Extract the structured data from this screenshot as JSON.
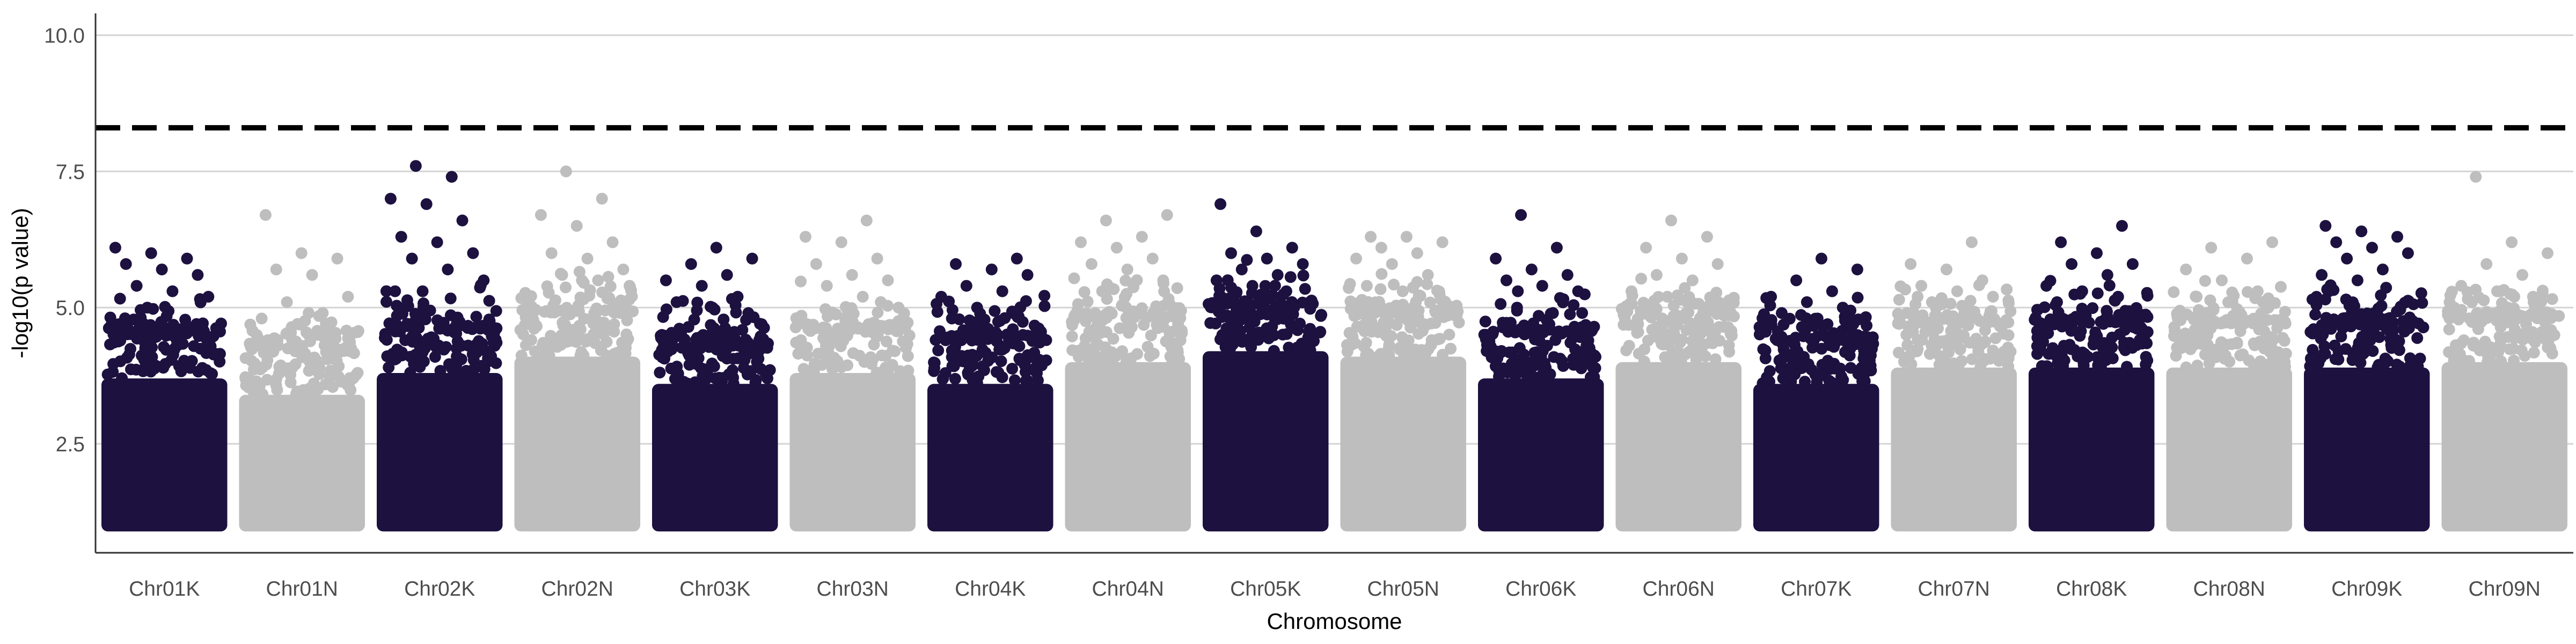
{
  "chart_data": {
    "type": "scatter",
    "title": "",
    "xlabel": "Chromosome",
    "ylabel": "-log10(p value)",
    "ylim": [
      0.5,
      10.4
    ],
    "yticks": [
      "2.5",
      "5.0",
      "7.5",
      "10.0"
    ],
    "ytick_values": [
      2.5,
      5.0,
      7.5,
      10.0
    ],
    "grid": "horizontal major lines at y ticks",
    "threshold_line": {
      "y": 8.3,
      "style": "dashed",
      "color": "#000000"
    },
    "colors": [
      "#1d1140",
      "#bebebe"
    ],
    "point_min_y": 1.0,
    "categories": [
      "Chr01K",
      "Chr01N",
      "Chr02K",
      "Chr02N",
      "Chr03K",
      "Chr03N",
      "Chr04K",
      "Chr04N",
      "Chr05K",
      "Chr05N",
      "Chr06K",
      "Chr06N",
      "Chr07K",
      "Chr07N",
      "Chr08K",
      "Chr08N",
      "Chr09K",
      "Chr09N"
    ],
    "series": [
      {
        "category": "Chr01K",
        "color": "#1d1140",
        "dense_top": 4.5,
        "peaks": [
          6.1,
          6.0,
          5.9,
          5.8,
          5.7,
          5.6,
          5.4,
          5.3,
          5.2,
          5.0
        ]
      },
      {
        "category": "Chr01N",
        "color": "#bebebe",
        "dense_top": 4.2,
        "peaks": [
          6.7,
          6.0,
          5.9,
          5.7,
          5.6,
          5.2,
          5.1,
          4.9,
          4.8,
          4.7
        ]
      },
      {
        "category": "Chr02K",
        "color": "#1d1140",
        "dense_top": 4.6,
        "peaks": [
          7.6,
          7.4,
          7.0,
          6.9,
          6.6,
          6.3,
          6.2,
          6.0,
          5.9,
          5.7,
          5.5,
          5.3
        ]
      },
      {
        "category": "Chr02N",
        "color": "#bebebe",
        "dense_top": 4.9,
        "peaks": [
          7.5,
          7.0,
          6.7,
          6.5,
          6.2,
          6.0,
          5.9,
          5.7,
          5.6,
          5.5
        ]
      },
      {
        "category": "Chr03K",
        "color": "#1d1140",
        "dense_top": 4.4,
        "peaks": [
          6.1,
          5.9,
          5.8,
          5.6,
          5.5,
          5.4,
          5.2,
          5.1,
          5.0,
          4.9
        ]
      },
      {
        "category": "Chr03N",
        "color": "#bebebe",
        "dense_top": 4.6,
        "peaks": [
          6.6,
          6.3,
          6.2,
          5.9,
          5.8,
          5.6,
          5.5,
          5.4,
          5.2,
          5.0
        ]
      },
      {
        "category": "Chr04K",
        "color": "#1d1140",
        "dense_top": 4.4,
        "peaks": [
          5.9,
          5.8,
          5.7,
          5.6,
          5.4,
          5.3,
          5.2,
          5.0,
          4.9,
          4.8
        ]
      },
      {
        "category": "Chr04N",
        "color": "#bebebe",
        "dense_top": 4.8,
        "peaks": [
          6.7,
          6.6,
          6.3,
          6.2,
          6.1,
          5.9,
          5.8,
          5.7,
          5.5,
          5.3
        ]
      },
      {
        "category": "Chr05K",
        "color": "#1d1140",
        "dense_top": 5.0,
        "peaks": [
          6.9,
          6.4,
          6.1,
          6.0,
          5.9,
          5.8,
          5.7,
          5.6,
          5.5,
          5.4
        ]
      },
      {
        "category": "Chr05N",
        "color": "#bebebe",
        "dense_top": 4.9,
        "peaks": [
          6.3,
          6.3,
          6.2,
          6.1,
          6.0,
          5.9,
          5.8,
          5.6,
          5.4,
          5.3
        ]
      },
      {
        "category": "Chr06K",
        "color": "#1d1140",
        "dense_top": 4.5,
        "peaks": [
          6.7,
          6.1,
          5.9,
          5.7,
          5.6,
          5.5,
          5.4,
          5.3,
          5.0,
          4.9
        ]
      },
      {
        "category": "Chr06N",
        "color": "#bebebe",
        "dense_top": 4.8,
        "peaks": [
          6.6,
          6.3,
          6.1,
          5.9,
          5.8,
          5.6,
          5.5,
          5.3,
          5.2,
          5.0
        ]
      },
      {
        "category": "Chr07K",
        "color": "#1d1140",
        "dense_top": 4.4,
        "peaks": [
          5.9,
          5.7,
          5.5,
          5.3,
          5.2,
          5.1,
          5.0,
          4.9,
          4.8,
          4.7
        ]
      },
      {
        "category": "Chr07N",
        "color": "#bebebe",
        "dense_top": 4.7,
        "peaks": [
          6.2,
          5.8,
          5.7,
          5.5,
          5.4,
          5.3,
          5.2,
          5.1,
          5.0,
          4.9
        ]
      },
      {
        "category": "Chr08K",
        "color": "#1d1140",
        "dense_top": 4.7,
        "peaks": [
          6.5,
          6.2,
          6.0,
          5.8,
          5.8,
          5.6,
          5.4,
          5.3,
          5.2,
          5.1
        ]
      },
      {
        "category": "Chr08N",
        "color": "#bebebe",
        "dense_top": 4.7,
        "peaks": [
          6.2,
          6.1,
          5.9,
          5.7,
          5.5,
          5.3,
          5.2,
          5.1,
          5.0,
          4.9
        ]
      },
      {
        "category": "Chr09K",
        "color": "#1d1140",
        "dense_top": 4.7,
        "peaks": [
          6.5,
          6.4,
          6.3,
          6.2,
          6.1,
          6.0,
          5.9,
          5.7,
          5.6,
          5.5
        ]
      },
      {
        "category": "Chr09N",
        "color": "#bebebe",
        "dense_top": 4.8,
        "peaks": [
          7.4,
          6.2,
          6.0,
          5.8,
          5.6,
          5.4,
          5.3,
          5.2,
          5.1,
          5.0
        ]
      }
    ]
  }
}
